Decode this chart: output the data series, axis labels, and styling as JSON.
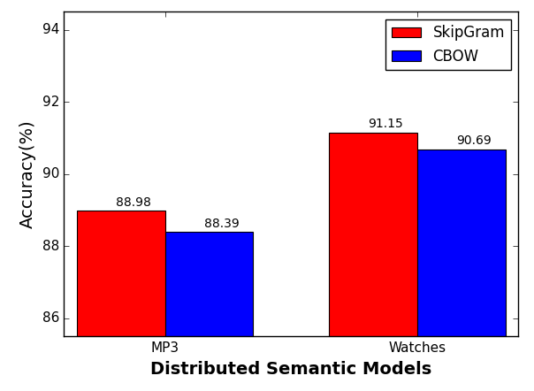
{
  "categories": [
    "MP3",
    "Watches"
  ],
  "skipgram_values": [
    88.98,
    91.15
  ],
  "cbow_values": [
    88.39,
    90.69
  ],
  "skipgram_color": "#ff0000",
  "cbow_color": "#0000ff",
  "bar_width": 0.35,
  "xlabel": "Distributed Semantic Models",
  "ylabel": "Accuracy(%)",
  "ylim": [
    85.5,
    94.5
  ],
  "yticks": [
    86,
    88,
    90,
    92,
    94
  ],
  "legend_labels": [
    "SkipGram",
    "CBOW"
  ],
  "value_fontsize": 10,
  "axis_label_fontsize": 14,
  "tick_fontsize": 11,
  "legend_fontsize": 12
}
